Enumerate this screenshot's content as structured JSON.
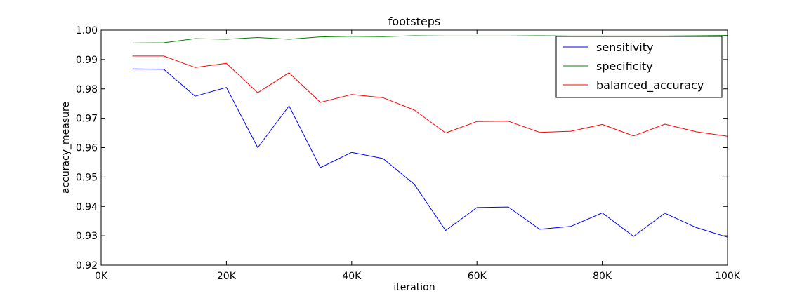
{
  "chart_data": {
    "type": "line",
    "title": "footsteps",
    "xlabel": "iteration",
    "ylabel": "accuracy_measure",
    "xlim": [
      0,
      100000
    ],
    "ylim": [
      0.92,
      1.0
    ],
    "x_ticks": [
      0,
      20000,
      40000,
      60000,
      80000,
      100000
    ],
    "x_tick_labels": [
      "0K",
      "20K",
      "40K",
      "60K",
      "80K",
      "100K"
    ],
    "y_ticks": [
      0.92,
      0.93,
      0.94,
      0.95,
      0.96,
      0.97,
      0.98,
      0.99,
      1.0
    ],
    "y_tick_labels": [
      "0.92",
      "0.93",
      "0.94",
      "0.95",
      "0.96",
      "0.97",
      "0.98",
      "0.99",
      "1.00"
    ],
    "grid": false,
    "legend_position": "top-right",
    "x": [
      5000,
      10000,
      15000,
      20000,
      25000,
      30000,
      35000,
      40000,
      45000,
      50000,
      55000,
      60000,
      65000,
      70000,
      75000,
      80000,
      85000,
      90000,
      95000,
      100000
    ],
    "series": [
      {
        "name": "sensitivity",
        "color": "#0000ff",
        "values": [
          0.9868,
          0.9867,
          0.9775,
          0.9805,
          0.96,
          0.9742,
          0.9532,
          0.9584,
          0.9563,
          0.9475,
          0.9318,
          0.9396,
          0.9398,
          0.9322,
          0.9332,
          0.9378,
          0.9298,
          0.9377,
          0.9328,
          0.9295
        ]
      },
      {
        "name": "specificity",
        "color": "#008000",
        "values": [
          0.9956,
          0.9957,
          0.9971,
          0.9969,
          0.9975,
          0.9969,
          0.9977,
          0.9979,
          0.9978,
          0.9981,
          0.998,
          0.998,
          0.998,
          0.9981,
          0.998,
          0.998,
          0.998,
          0.998,
          0.9981,
          0.9982
        ]
      },
      {
        "name": "balanced_accuracy",
        "color": "#ff0000",
        "values": [
          0.9912,
          0.9912,
          0.9873,
          0.9887,
          0.9787,
          0.9855,
          0.9754,
          0.9781,
          0.977,
          0.9728,
          0.965,
          0.9689,
          0.969,
          0.9652,
          0.9656,
          0.9679,
          0.964,
          0.968,
          0.9654,
          0.9639
        ]
      }
    ]
  }
}
